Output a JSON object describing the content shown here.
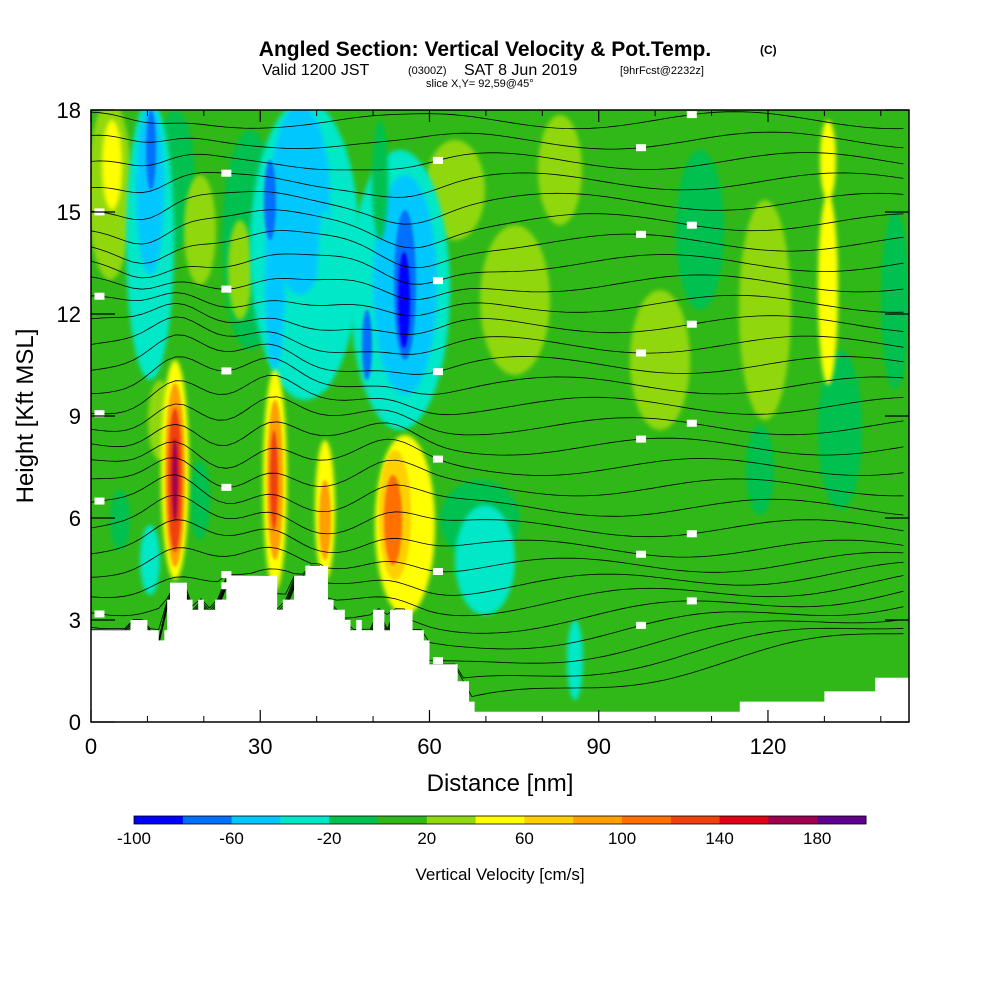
{
  "title": {
    "main": "Angled Section: Vertical Velocity & Pot.Temp.",
    "unit_tag": "(C)",
    "valid_prefix": "Valid 1200 JST",
    "valid_utc": "(0300Z)",
    "valid_date": "SAT 8 Jun 2019",
    "forecast": "[9hrFcst@2232z]",
    "slice": "slice X,Y= 92,59@45°"
  },
  "chart_data": {
    "type": "heatmap",
    "xlabel": "Distance [nm]",
    "ylabel": "Height [Kft MSL]",
    "xlim": [
      0,
      145
    ],
    "ylim": [
      0,
      18
    ],
    "x_ticks": [
      "0",
      "30",
      "60",
      "90",
      "120"
    ],
    "y_ticks": [
      "0",
      "3",
      "6",
      "9",
      "12",
      "15",
      "18"
    ],
    "colorbar": {
      "label": "Vertical Velocity [cm/s]",
      "range": [
        -100,
        200
      ],
      "step": 20,
      "tick_labels": [
        "-100",
        "-60",
        "-20",
        "20",
        "60",
        "100",
        "140",
        "180"
      ],
      "colors": [
        "#0000ff",
        "#0070ff",
        "#00c8ff",
        "#00e8c8",
        "#00c050",
        "#30b818",
        "#90d810",
        "#ffff00",
        "#ffd000",
        "#ffa000",
        "#ff7000",
        "#f04010",
        "#e00018",
        "#a00050",
        "#600090"
      ]
    },
    "updraft_cores": [
      {
        "x": 15,
        "y_range": [
          4.5,
          10.5
        ],
        "max": 150
      },
      {
        "x": 32,
        "y_range": [
          4.5,
          10.0
        ],
        "max": 110
      },
      {
        "x": 42,
        "y_range": [
          4.5,
          8.0
        ],
        "max": 80
      },
      {
        "x": 53,
        "y_range": [
          4.0,
          9.0
        ],
        "max": 110
      },
      {
        "x": 128,
        "y_range": [
          10.0,
          17.5
        ],
        "max": 60
      }
    ],
    "downdraft_cores": [
      {
        "x": 11,
        "y_range": [
          13.0,
          18.0
        ],
        "min": -60
      },
      {
        "x": 56,
        "y_range": [
          10.5,
          15.5
        ],
        "min": -100
      },
      {
        "x": 49,
        "y_range": [
          10.0,
          12.0
        ],
        "min": -80
      },
      {
        "x": 36,
        "y_range": [
          11.0,
          18.0
        ],
        "min": -40
      }
    ],
    "terrain": [
      [
        0,
        2.7
      ],
      [
        5,
        2.7
      ],
      [
        7,
        3.0
      ],
      [
        9,
        3.0
      ],
      [
        10,
        2.7
      ],
      [
        11,
        2.7
      ],
      [
        12,
        2.4
      ],
      [
        13,
        2.7
      ],
      [
        13.5,
        3.6
      ],
      [
        14,
        4.1
      ],
      [
        16,
        4.1
      ],
      [
        17,
        3.6
      ],
      [
        18,
        3.3
      ],
      [
        19,
        3.6
      ],
      [
        20,
        3.3
      ],
      [
        22,
        3.6
      ],
      [
        24,
        4.3
      ],
      [
        31,
        4.3
      ],
      [
        33,
        3.3
      ],
      [
        34,
        3.6
      ],
      [
        36,
        4.3
      ],
      [
        38,
        4.6
      ],
      [
        41,
        4.6
      ],
      [
        42,
        3.6
      ],
      [
        43,
        3.3
      ],
      [
        45,
        3.0
      ],
      [
        46,
        2.7
      ],
      [
        47,
        3.0
      ],
      [
        48,
        2.7
      ],
      [
        50,
        3.3
      ],
      [
        52,
        2.7
      ],
      [
        53,
        3.3
      ],
      [
        56,
        3.3
      ],
      [
        57,
        2.7
      ],
      [
        59,
        2.4
      ],
      [
        60,
        1.7
      ],
      [
        64,
        1.7
      ],
      [
        65,
        1.2
      ],
      [
        67,
        0.6
      ],
      [
        68,
        0.3
      ],
      [
        114,
        0.3
      ],
      [
        115,
        0.6
      ],
      [
        129,
        0.6
      ],
      [
        130,
        0.9
      ],
      [
        138,
        0.9
      ],
      [
        139,
        1.3
      ],
      [
        145,
        1.3
      ]
    ]
  }
}
